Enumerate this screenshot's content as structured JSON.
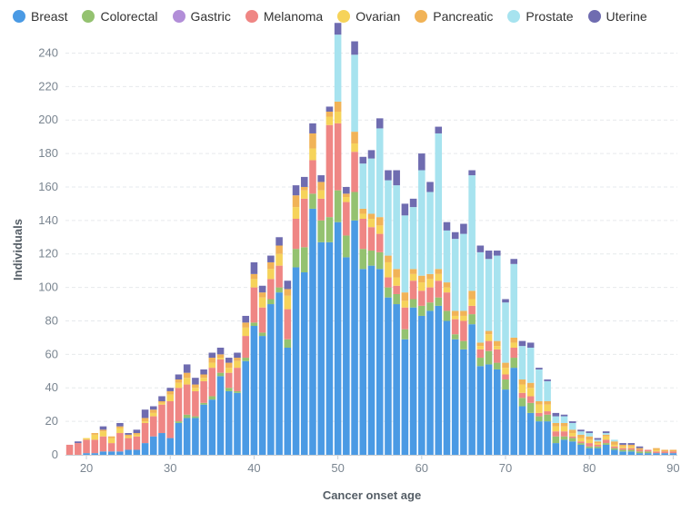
{
  "chart_data": {
    "type": "bar",
    "stacked": true,
    "xlabel": "Cancer onset age",
    "ylabel": "Individuals",
    "xlim": [
      17.5,
      90.5
    ],
    "ylim": [
      0,
      250
    ],
    "xticks": [
      20,
      30,
      40,
      50,
      60,
      70,
      80,
      90
    ],
    "yticks": [
      0,
      20,
      40,
      60,
      80,
      100,
      120,
      140,
      160,
      180,
      200,
      220,
      240
    ],
    "grid": "horizontal dashed",
    "legend_position": "top",
    "x": [
      18,
      19,
      20,
      21,
      22,
      23,
      24,
      25,
      26,
      27,
      28,
      29,
      30,
      31,
      32,
      33,
      34,
      35,
      36,
      37,
      38,
      39,
      40,
      41,
      42,
      43,
      44,
      45,
      46,
      47,
      48,
      49,
      50,
      51,
      52,
      53,
      54,
      55,
      56,
      57,
      58,
      59,
      60,
      61,
      62,
      63,
      64,
      65,
      66,
      67,
      68,
      69,
      70,
      71,
      72,
      73,
      74,
      75,
      76,
      77,
      78,
      79,
      80,
      81,
      82,
      83,
      84,
      85,
      86,
      87,
      88,
      89,
      90
    ],
    "series": [
      {
        "name": "Breast",
        "color": "#4a9ae4",
        "values": [
          0,
          0,
          1,
          1,
          2,
          2,
          2,
          3,
          3,
          7,
          11,
          13,
          10,
          19,
          22,
          22,
          30,
          33,
          47,
          38,
          37,
          56,
          77,
          71,
          90,
          97,
          64,
          112,
          109,
          147,
          127,
          127,
          139,
          118,
          140,
          111,
          113,
          111,
          94,
          90,
          69,
          88,
          83,
          86,
          89,
          80,
          69,
          63,
          78,
          53,
          54,
          51,
          39,
          52,
          29,
          25,
          20,
          20,
          7,
          9,
          8,
          6,
          4,
          4,
          6,
          3,
          2,
          2,
          1,
          1,
          1,
          1,
          1
        ]
      },
      {
        "name": "Colorectal",
        "color": "#94c270",
        "values": [
          0,
          0,
          0,
          0,
          0,
          0,
          0,
          0,
          0,
          0,
          0,
          0,
          0,
          1,
          2,
          1,
          1,
          2,
          2,
          2,
          1,
          2,
          2,
          2,
          3,
          3,
          5,
          11,
          15,
          9,
          13,
          15,
          19,
          13,
          17,
          12,
          9,
          10,
          6,
          6,
          6,
          5,
          6,
          5,
          5,
          6,
          3,
          5,
          6,
          5,
          8,
          4,
          6,
          6,
          5,
          6,
          3,
          4,
          4,
          2,
          2,
          1,
          1,
          1,
          1,
          1,
          1,
          1,
          1,
          1,
          0,
          0,
          0
        ]
      },
      {
        "name": "Gastric",
        "color": "#b28ed8",
        "values": [
          0,
          0,
          0,
          0,
          0,
          0,
          0,
          0,
          0,
          0,
          0,
          0,
          0,
          0,
          0,
          0,
          0,
          0,
          0,
          0,
          0,
          0,
          0,
          0,
          0,
          0,
          0,
          0,
          0,
          0,
          0,
          0,
          0,
          0,
          0,
          0,
          0,
          0,
          0,
          0,
          0,
          0,
          0,
          0,
          0,
          0,
          0,
          0,
          0,
          0,
          0,
          0,
          0,
          0,
          0,
          0,
          0,
          0,
          0,
          0,
          0,
          0,
          0,
          0,
          0,
          0,
          0,
          0,
          0,
          0,
          0,
          0,
          0
        ]
      },
      {
        "name": "Melanoma",
        "color": "#ef8684",
        "values": [
          6,
          7,
          8,
          8,
          9,
          5,
          11,
          7,
          8,
          12,
          12,
          17,
          22,
          20,
          18,
          15,
          13,
          17,
          8,
          9,
          14,
          13,
          21,
          15,
          12,
          13,
          18,
          18,
          29,
          20,
          13,
          55,
          40,
          20,
          24,
          18,
          14,
          11,
          6,
          5,
          13,
          11,
          9,
          9,
          10,
          11,
          9,
          12,
          5,
          5,
          6,
          8,
          3,
          6,
          3,
          4,
          2,
          2,
          3,
          3,
          1,
          1,
          2,
          1,
          2,
          1,
          1,
          1,
          1,
          1,
          1,
          1,
          1
        ]
      },
      {
        "name": "Ovarian",
        "color": "#f6d35a",
        "values": [
          0,
          0,
          1,
          3,
          3,
          3,
          3,
          1,
          1,
          1,
          2,
          1,
          4,
          3,
          4,
          2,
          2,
          3,
          1,
          3,
          4,
          5,
          5,
          6,
          6,
          7,
          8,
          7,
          5,
          7,
          5,
          5,
          7,
          3,
          5,
          3,
          5,
          5,
          9,
          5,
          4,
          4,
          5,
          5,
          4,
          3,
          2,
          3,
          4,
          2,
          4,
          2,
          4,
          3,
          5,
          5,
          5,
          4,
          3,
          3,
          2,
          2,
          2,
          1,
          2,
          1,
          1,
          1,
          0,
          0,
          1,
          0,
          0
        ]
      },
      {
        "name": "Pancreatic",
        "color": "#f1b357",
        "values": [
          0,
          0,
          0,
          1,
          1,
          1,
          1,
          1,
          1,
          2,
          2,
          1,
          2,
          2,
          3,
          2,
          2,
          3,
          2,
          3,
          2,
          3,
          3,
          3,
          4,
          5,
          4,
          7,
          2,
          9,
          5,
          3,
          6,
          2,
          7,
          3,
          3,
          5,
          4,
          5,
          5,
          3,
          4,
          3,
          3,
          3,
          3,
          3,
          5,
          2,
          2,
          3,
          3,
          3,
          3,
          3,
          2,
          2,
          2,
          2,
          2,
          2,
          2,
          1,
          1,
          2,
          1,
          1,
          1,
          0,
          1,
          1,
          1
        ]
      },
      {
        "name": "Prostate",
        "color": "#a7e3ef",
        "values": [
          0,
          0,
          0,
          0,
          0,
          0,
          0,
          0,
          0,
          0,
          0,
          0,
          0,
          0,
          0,
          0,
          0,
          0,
          0,
          0,
          0,
          0,
          0,
          0,
          0,
          0,
          0,
          0,
          0,
          0,
          0,
          0,
          40,
          0,
          46,
          27,
          33,
          53,
          45,
          50,
          46,
          37,
          63,
          49,
          81,
          31,
          43,
          46,
          69,
          54,
          43,
          51,
          36,
          44,
          20,
          21,
          19,
          12,
          4,
          4,
          4,
          2,
          2,
          1,
          1,
          1,
          0,
          0,
          0,
          0,
          0,
          0,
          0
        ]
      },
      {
        "name": "Uterine",
        "color": "#6f6cb0",
        "values": [
          0,
          1,
          0,
          0,
          2,
          0,
          2,
          1,
          2,
          5,
          2,
          3,
          2,
          3,
          5,
          4,
          3,
          3,
          4,
          3,
          3,
          4,
          7,
          4,
          4,
          5,
          5,
          6,
          6,
          6,
          4,
          3,
          7,
          4,
          8,
          4,
          5,
          6,
          6,
          9,
          7,
          5,
          10,
          6,
          4,
          5,
          4,
          6,
          3,
          4,
          5,
          3,
          2,
          3,
          3,
          3,
          1,
          1,
          2,
          1,
          1,
          1,
          1,
          1,
          1,
          0,
          1,
          1,
          1,
          0,
          0,
          0,
          0
        ]
      }
    ]
  }
}
